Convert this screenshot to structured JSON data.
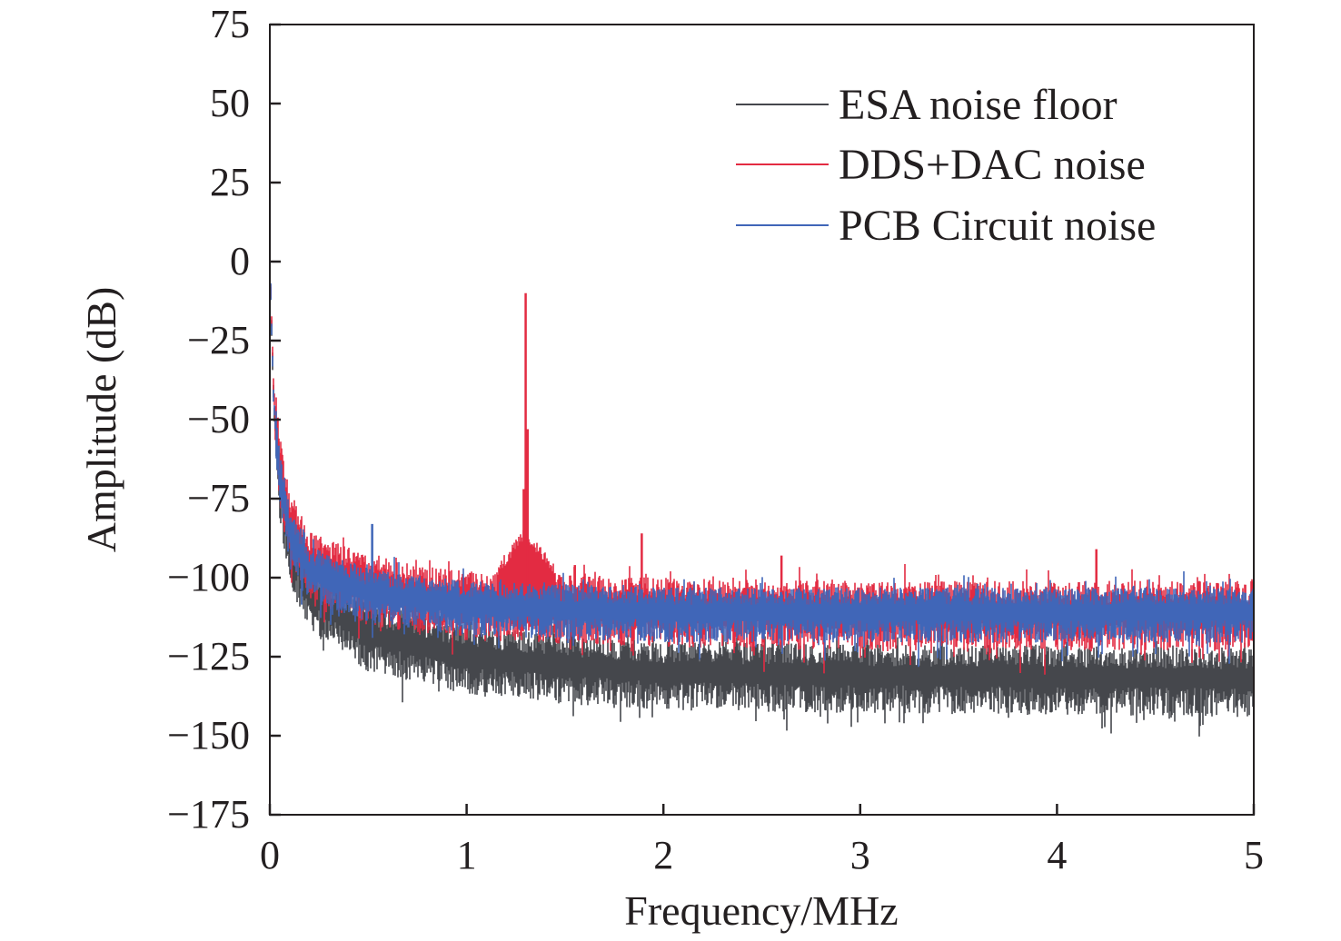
{
  "chart_data": {
    "type": "line",
    "title": "",
    "xlabel": "Frequency/MHz",
    "ylabel": "Amplitude (dB)",
    "xlim": [
      0,
      5
    ],
    "ylim": [
      -175,
      75
    ],
    "xticks": [
      "0",
      "1",
      "2",
      "3",
      "4",
      "5"
    ],
    "yticks": [
      "75",
      "50",
      "25",
      "0",
      "−25",
      "−50",
      "−75",
      "−100",
      "−125",
      "−150",
      "−175"
    ],
    "ytick_values": [
      75,
      50,
      25,
      0,
      -25,
      -50,
      -75,
      -100,
      -125,
      -150,
      -175
    ],
    "xtick_values": [
      0,
      1,
      2,
      3,
      4,
      5
    ],
    "grid": false,
    "legend_position": "top-right",
    "series": [
      {
        "name": "ESA noise floor",
        "color": "#45474c",
        "center_curve": [
          [
            0,
            0
          ],
          [
            0.02,
            -45
          ],
          [
            0.05,
            -70
          ],
          [
            0.1,
            -90
          ],
          [
            0.2,
            -105
          ],
          [
            0.5,
            -118
          ],
          [
            1,
            -125
          ],
          [
            1.5,
            -128
          ],
          [
            2,
            -130
          ],
          [
            3,
            -131
          ],
          [
            5,
            -132
          ]
        ],
        "noise_spread_db": 10,
        "spikes": []
      },
      {
        "name": "DDS+DAC noise",
        "color": "#e32b42",
        "center_curve": [
          [
            0,
            0
          ],
          [
            0.02,
            -42
          ],
          [
            0.05,
            -65
          ],
          [
            0.1,
            -82
          ],
          [
            0.2,
            -95
          ],
          [
            0.5,
            -103
          ],
          [
            1,
            -108
          ],
          [
            2,
            -110
          ],
          [
            3,
            -111
          ],
          [
            5,
            -111
          ]
        ],
        "noise_spread_db": 10,
        "spikes": [
          [
            1.3,
            -10
          ],
          [
            1.31,
            -53
          ],
          [
            1.29,
            -72
          ],
          [
            1.89,
            -86
          ],
          [
            4.2,
            -91
          ],
          [
            2.6,
            -93
          ],
          [
            1.55,
            -96
          ]
        ]
      },
      {
        "name": "PCB Circuit noise",
        "color": "#4066b8",
        "center_curve": [
          [
            0,
            0
          ],
          [
            0.02,
            -45
          ],
          [
            0.05,
            -68
          ],
          [
            0.1,
            -85
          ],
          [
            0.2,
            -98
          ],
          [
            0.5,
            -105
          ],
          [
            1,
            -109
          ],
          [
            2,
            -111
          ],
          [
            3,
            -111
          ],
          [
            5,
            -111
          ]
        ],
        "noise_spread_db": 8,
        "spikes": [
          [
            0.52,
            -83
          ]
        ]
      }
    ]
  }
}
